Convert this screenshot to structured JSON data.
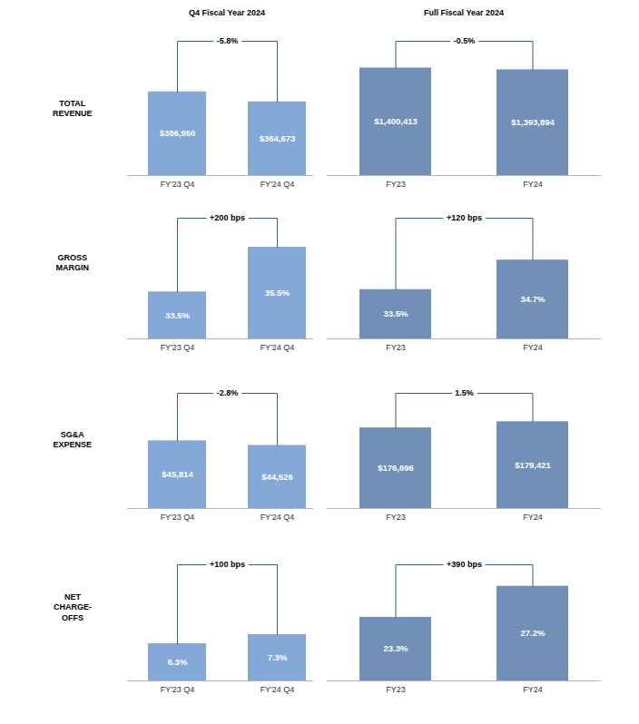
{
  "column_titles": [
    "Q4 Fiscal Year 2024",
    "Full Fiscal Year 2024"
  ],
  "row_labels": [
    "TOTAL REVENUE",
    "GROSS MARGIN",
    "SG&A EXPENSE",
    "NET CHARGE-OFFS"
  ],
  "chart_data": [
    {
      "type": "bar",
      "categories": [
        "FY'23 Q4",
        "FY'24 Q4"
      ],
      "values": [
        386950,
        364673
      ],
      "value_labels": [
        "$386,950",
        "$364,673"
      ],
      "color": "#84a8d8",
      "ylim": [
        200000,
        500000
      ],
      "data_labels": true,
      "tick_labels": "x",
      "annotations": [
        "-5.8%"
      ]
    },
    {
      "type": "bar",
      "categories": [
        "FY23",
        "FY24"
      ],
      "values": [
        1400413,
        1393894
      ],
      "value_labels": [
        "$1,400,413",
        "$1,393,894"
      ],
      "color": "#7190b8",
      "ylim": [
        1000000,
        1500000
      ],
      "data_labels": true,
      "tick_labels": "x",
      "annotations": [
        "-0.5%"
      ]
    },
    {
      "type": "bar",
      "categories": [
        "FY'23 Q4",
        "FY'24 Q4"
      ],
      "values": [
        33.5,
        35.5
      ],
      "value_labels": [
        "33.5%",
        "35.5%"
      ],
      "color": "#84a8d8",
      "ylim": [
        31.4,
        36.8
      ],
      "data_labels": true,
      "tick_labels": "x",
      "annotations": [
        "+200 bps"
      ]
    },
    {
      "type": "bar",
      "categories": [
        "FY23",
        "FY24"
      ],
      "values": [
        33.5,
        34.7
      ],
      "value_labels": [
        "33.5%",
        "34.7%"
      ],
      "color": "#7190b8",
      "ylim": [
        31.5,
        36.4
      ],
      "data_labels": true,
      "tick_labels": "x",
      "annotations": [
        "+120 bps"
      ]
    },
    {
      "type": "bar",
      "categories": [
        "FY'23 Q4",
        "FY'24 Q4"
      ],
      "values": [
        45814,
        44526
      ],
      "value_labels": [
        "$45,814",
        "$44,526"
      ],
      "color": "#84a8d8",
      "ylim": [
        27000,
        59000
      ],
      "data_labels": true,
      "tick_labels": "x",
      "annotations": [
        "-2.8%"
      ]
    },
    {
      "type": "bar",
      "categories": [
        "FY23",
        "FY24"
      ],
      "values": [
        176696,
        179421
      ],
      "value_labels": [
        "$176,696",
        "$179,421"
      ],
      "color": "#7190b8",
      "ylim": [
        141000,
        192000
      ],
      "data_labels": true,
      "tick_labels": "x",
      "annotations": [
        "1.5%"
      ]
    },
    {
      "type": "bar",
      "categories": [
        "FY'23 Q4",
        "FY'24 Q4"
      ],
      "values": [
        6.3,
        7.3
      ],
      "value_labels": [
        "6.3%",
        "7.3%"
      ],
      "color": "#84a8d8",
      "ylim": [
        2.2,
        15
      ],
      "data_labels": true,
      "tick_labels": "x",
      "annotations": [
        "+100 bps"
      ]
    },
    {
      "type": "bar",
      "categories": [
        "FY23",
        "FY24"
      ],
      "values": [
        23.3,
        27.2
      ],
      "value_labels": [
        "23.3%",
        "27.2%"
      ],
      "color": "#7190b8",
      "ylim": [
        15.3,
        29.9
      ],
      "data_labels": true,
      "tick_labels": "x",
      "annotations": [
        "+390 bps"
      ]
    }
  ]
}
